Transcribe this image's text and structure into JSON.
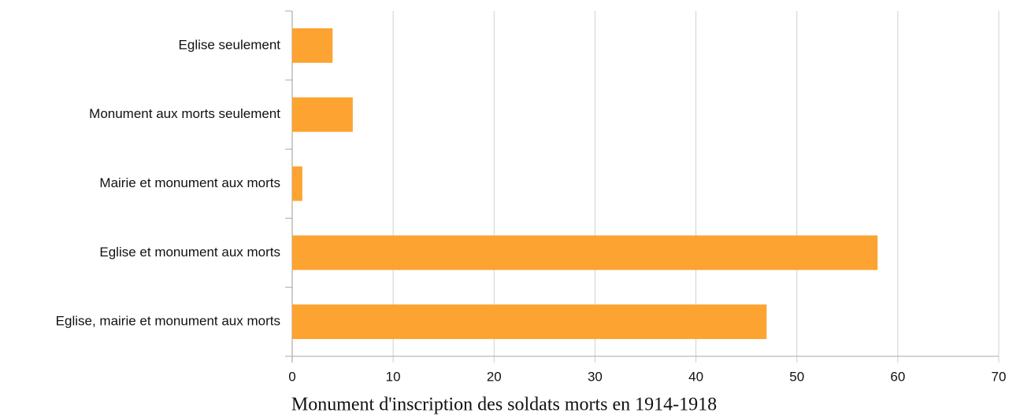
{
  "chart_data": {
    "type": "bar",
    "horizontal": true,
    "title": "Monument d'inscription des soldats morts en 1914-1918",
    "categories": [
      "Eglise seulement",
      "Monument aux morts seulement",
      "Mairie et monument aux morts",
      "Eglise et monument aux morts",
      "Eglise, mairie et monument aux morts"
    ],
    "values": [
      4,
      6,
      1,
      58,
      47
    ],
    "color": "#fca331",
    "xlim": [
      0,
      70
    ],
    "xticks": [
      0,
      10,
      20,
      30,
      40,
      50,
      60,
      70
    ],
    "grid": true
  }
}
